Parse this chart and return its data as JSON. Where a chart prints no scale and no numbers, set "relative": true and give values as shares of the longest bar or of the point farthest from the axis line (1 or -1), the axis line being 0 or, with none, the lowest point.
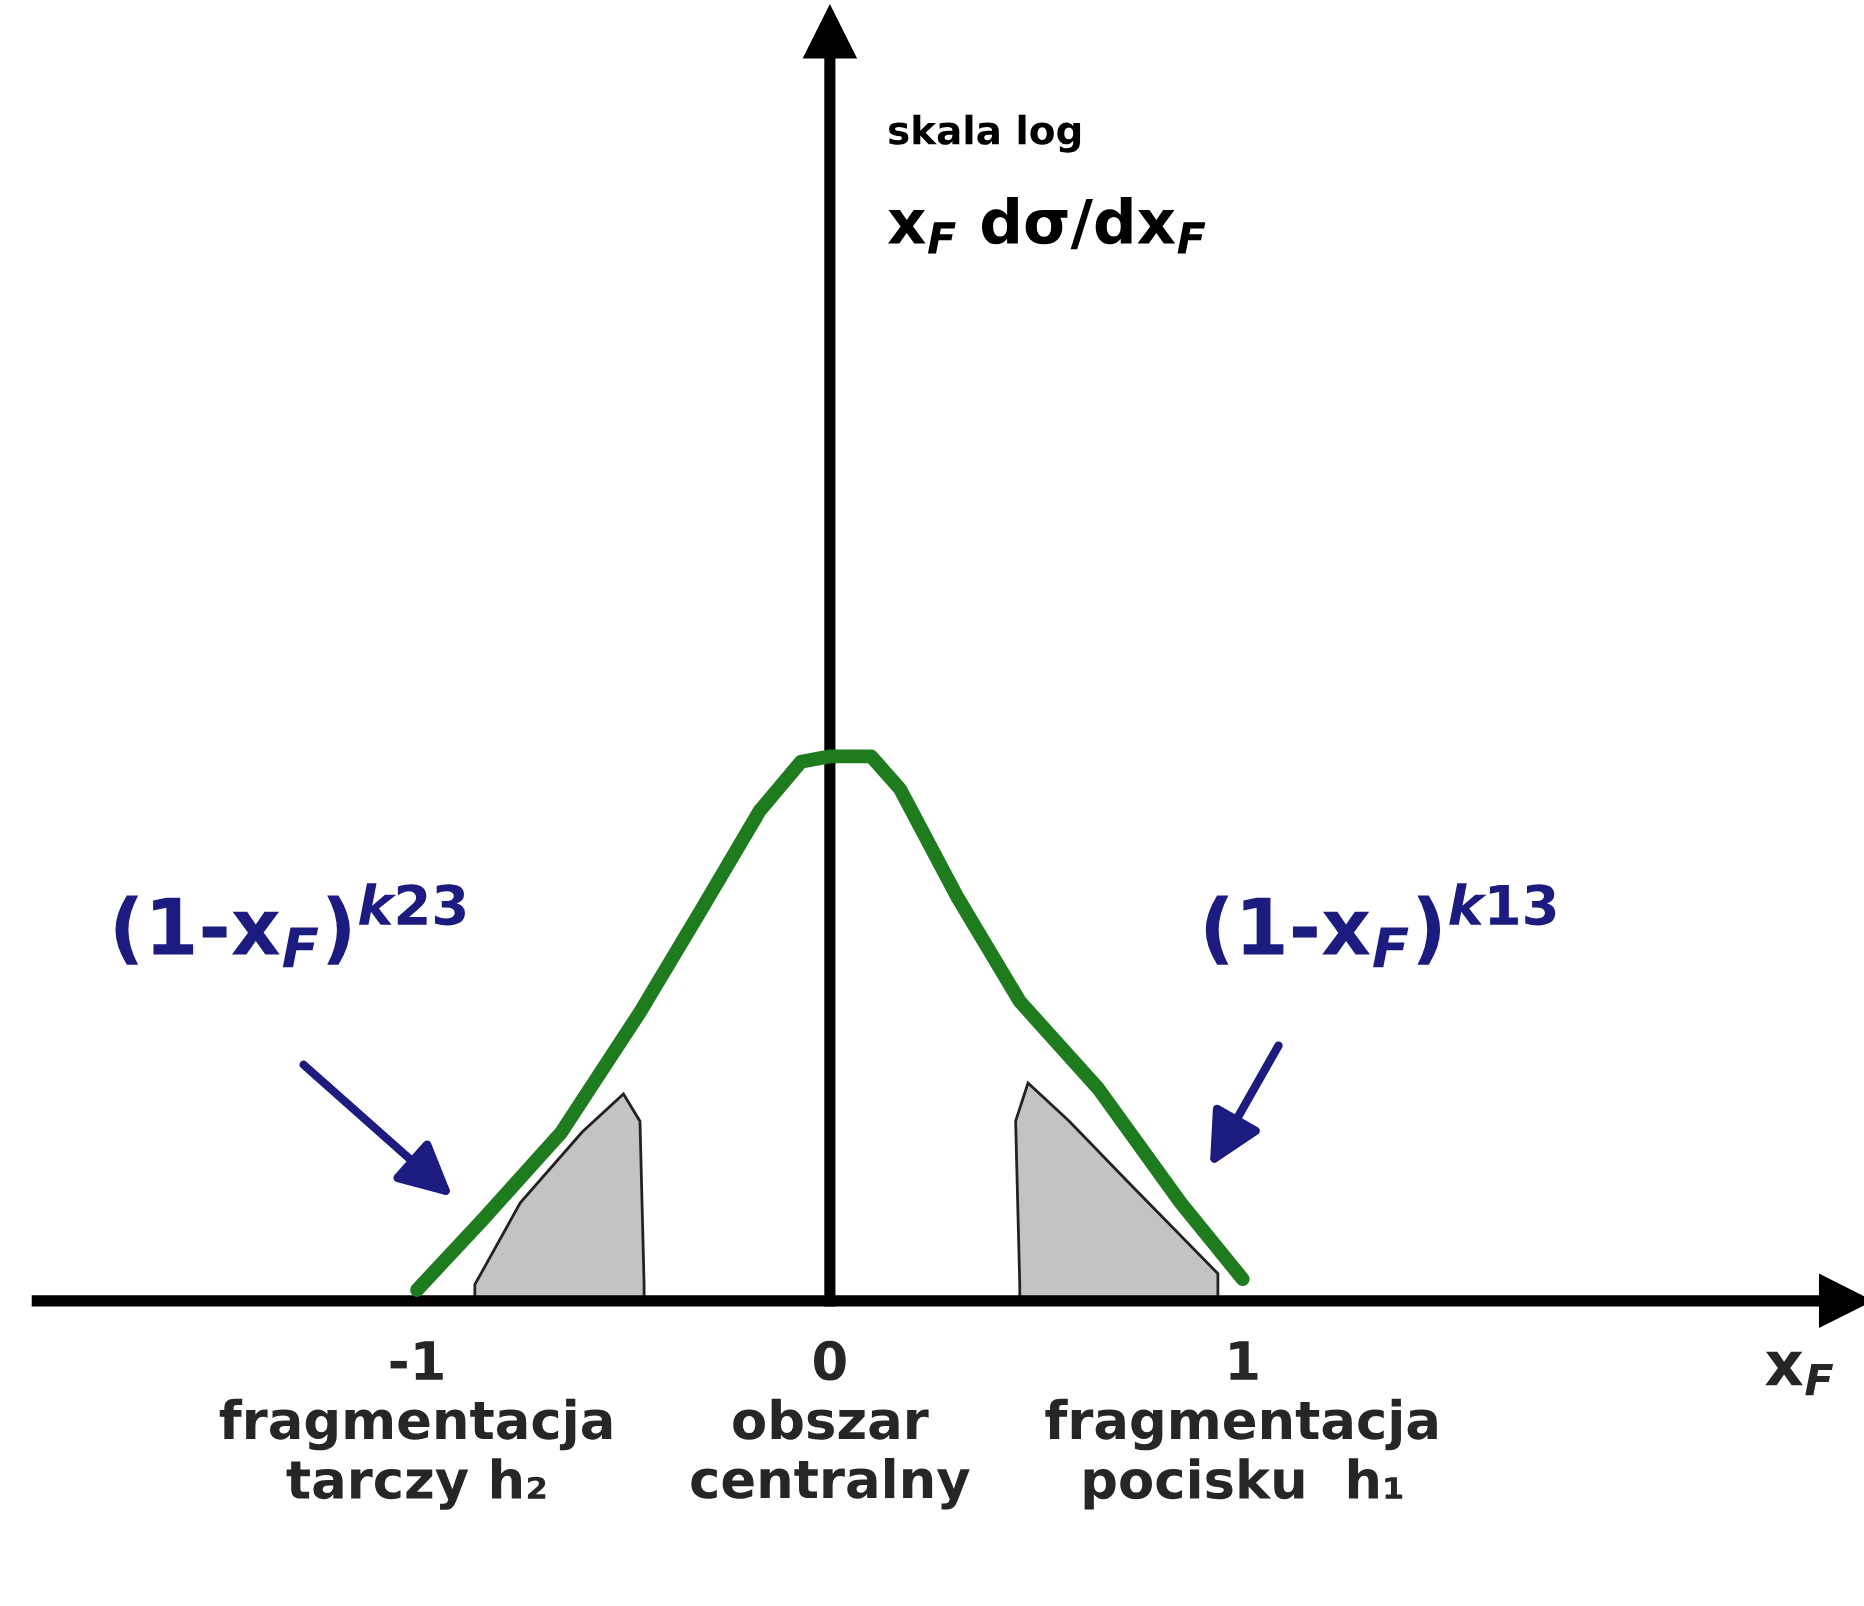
{
  "chart_data": {
    "type": "line",
    "relative": true,
    "xlabel": "x$_{F}$",
    "xlim": [
      -1.92,
      2.46
    ],
    "xticks": [
      {
        "value": -1,
        "label": "-1\nfragmentacja\ntarczy h₂"
      },
      {
        "value": 0,
        "label": "0\nobszar\ncentralny"
      },
      {
        "value": 1,
        "label": "1\nfragmentacja\npocisku  h₁"
      }
    ],
    "tick_labels": "x",
    "series": [
      {
        "type": "area",
        "color": "#c3c3c3",
        "x": [
          -0.86,
          -0.75,
          -0.6,
          -0.5,
          -0.46,
          -0.45
        ],
        "values": [
          0.03,
          0.18,
          0.31,
          0.38,
          0.33,
          0.03
        ]
      },
      {
        "type": "area",
        "color": "#c3c3c3",
        "x": [
          0.46,
          0.45,
          0.48,
          0.58,
          0.72,
          0.94
        ],
        "values": [
          0.03,
          0.33,
          0.4,
          0.33,
          0.22,
          0.05
        ]
      },
      {
        "color": "#1e7b1e",
        "x": [
          -1.0,
          -0.84,
          -0.65,
          -0.46,
          -0.31,
          -0.17,
          -0.07,
          0,
          0.1,
          0.17,
          0.31,
          0.46,
          0.65,
          0.85,
          1.0
        ],
        "values": [
          0.02,
          0.15,
          0.31,
          0.53,
          0.72,
          0.9,
          0.99,
          1.0,
          1.0,
          0.94,
          0.74,
          0.55,
          0.39,
          0.18,
          0.04
        ]
      }
    ],
    "annotations": [
      "skala log",
      "x$_{F}$ dσ/dx$_{F}$",
      "(1-x$_{F}$)$^{k23}$",
      "(1-x$_{F}$)$^{k13}$"
    ]
  }
}
